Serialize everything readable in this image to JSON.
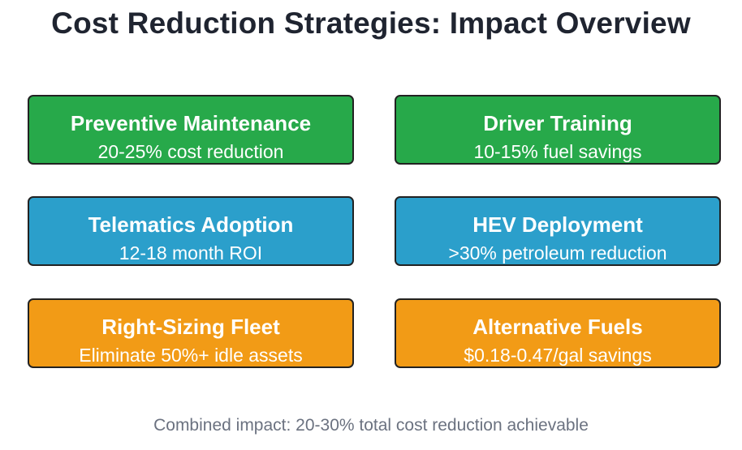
{
  "title": "Cost Reduction Strategies: Impact Overview",
  "colors": {
    "green": "#27a94a",
    "blue": "#2b9fcb",
    "orange": "#f29b16",
    "border": "#222222",
    "title_text": "#1f2430",
    "footer_text": "#6b7280"
  },
  "strategies": [
    {
      "name": "Preventive Maintenance",
      "impact": "20-25% cost reduction",
      "color": "green"
    },
    {
      "name": "Driver Training",
      "impact": "10-15% fuel savings",
      "color": "green"
    },
    {
      "name": "Telematics Adoption",
      "impact": "12-18 month ROI",
      "color": "blue"
    },
    {
      "name": "HEV Deployment",
      "impact": ">30% petroleum reduction",
      "color": "blue"
    },
    {
      "name": "Right-Sizing Fleet",
      "impact": "Eliminate 50%+ idle assets",
      "color": "orange"
    },
    {
      "name": "Alternative Fuels",
      "impact": "$0.18-0.47/gal savings",
      "color": "orange"
    }
  ],
  "footer": "Combined impact: 20-30% total cost reduction achievable"
}
